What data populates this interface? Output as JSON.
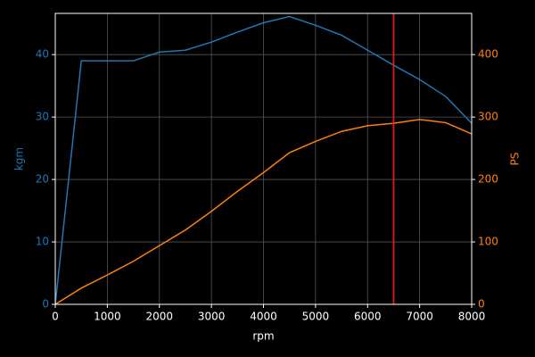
{
  "chart_data": {
    "type": "line",
    "x": [
      0,
      500,
      1000,
      1500,
      2000,
      2500,
      3000,
      3500,
      4000,
      4500,
      5000,
      5500,
      6000,
      6500,
      7000,
      7500,
      8000
    ],
    "series": [
      {
        "name": "kgm",
        "color": "#1f77b4",
        "values": [
          0,
          39,
          39,
          39,
          40.4,
          40.7,
          42,
          43.6,
          45.1,
          46.1,
          44.7,
          43.1,
          40.7,
          38.3,
          36,
          33.3,
          29
        ]
      },
      {
        "name": "PS",
        "color": "#ff7f0e",
        "axis": "y2",
        "values": [
          0,
          26,
          47,
          69,
          94,
          119,
          149,
          181,
          211,
          243,
          261,
          277,
          286,
          290,
          296,
          291,
          273
        ]
      }
    ],
    "xlabel": "rpm",
    "ylabel": "kgm",
    "y2label": "PS",
    "xlim": [
      0,
      8000
    ],
    "xticks": [
      0,
      1000,
      2000,
      3000,
      4000,
      5000,
      6000,
      7000,
      8000
    ],
    "ylim": [
      0,
      46.6
    ],
    "yticks": [
      0,
      10,
      20,
      30,
      40
    ],
    "y2lim": [
      0,
      466
    ],
    "y2ticks": [
      0,
      100,
      200,
      300,
      400
    ],
    "vline": {
      "value": 6500,
      "color": "#e41a1c"
    },
    "grid": true
  }
}
